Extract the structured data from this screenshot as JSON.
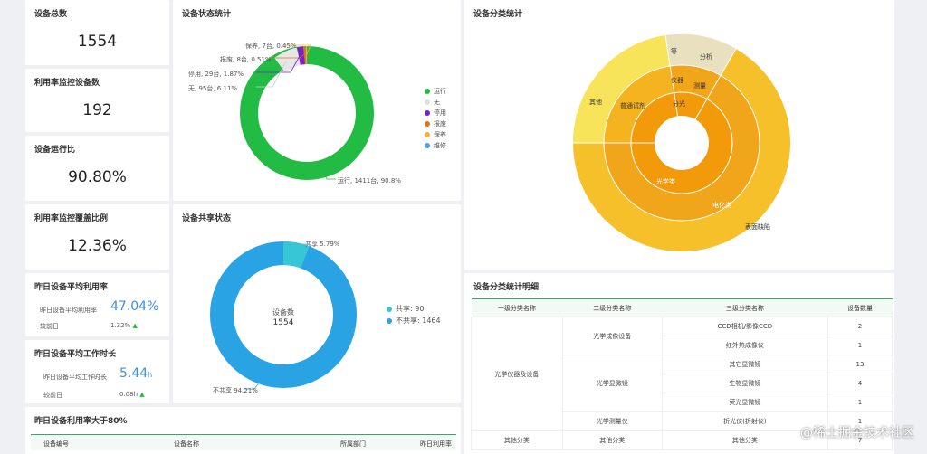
{
  "kpis": [
    {
      "title": "设备总数",
      "value": "1554"
    },
    {
      "title": "利用率监控设备数",
      "value": "192"
    },
    {
      "title": "设备运行比",
      "value": "90.80%"
    },
    {
      "title": "利用率监控覆盖比例",
      "value": "12.36%"
    }
  ],
  "util_rate": {
    "title": "昨日设备平均利用率",
    "label": "昨日设备平均利用率",
    "value": "47.04%",
    "compare_label": "较前日",
    "compare_value": "1.32%"
  },
  "work_time": {
    "title": "昨日设备平均工作时长",
    "label": "昨日设备平均工作时长",
    "value": "5.44",
    "unit": "h",
    "compare_label": "较前日",
    "compare_value": "0.08h"
  },
  "status_chart": {
    "title": "设备状态统计",
    "legend": [
      {
        "name": "运行",
        "color": "#22bb44"
      },
      {
        "name": "无",
        "color": "#e0e0e0"
      },
      {
        "name": "停用",
        "color": "#7a1fd0"
      },
      {
        "name": "报废",
        "color": "#e0761a"
      },
      {
        "name": "保养",
        "color": "#ffb030"
      },
      {
        "name": "维修",
        "color": "#4da3e8"
      }
    ],
    "labels": {
      "run": "运行, 1411台, 90.8%",
      "maint": "保养, 7台, 0.45%",
      "scrap": "报废, 8台, 0.51%",
      "stop": "停用, 29台, 1.87%",
      "none": "无, 95台, 6.11%"
    }
  },
  "share_chart": {
    "title": "设备共享状态",
    "center_label": "设备数",
    "center_value": "1554",
    "shared_label": "共享 5.79%",
    "unshared_label": "不共享 94.21%",
    "legend": [
      {
        "name": "共享: 90",
        "color": "#36c7d6"
      },
      {
        "name": "不共享: 1464",
        "color": "#29a3e3"
      }
    ]
  },
  "category_chart": {
    "title": "设备分类统计",
    "labels": {
      "inner": "光学类",
      "middle": "电化类",
      "outer_right": "表面缺陷",
      "left_mid": "普通试剂",
      "left_outer": "其他",
      "top1": "等",
      "top2": "仪器",
      "top3": "分光",
      "top4": "分析",
      "top5": "测量"
    }
  },
  "top_util": {
    "title": "昨日设备利用率大于80%",
    "columns": [
      "设备编号",
      "设备名称",
      "所属部门",
      "昨日利用率"
    ]
  },
  "detail": {
    "title": "设备分类统计明细",
    "columns": [
      "一级分类名称",
      "二级分类名称",
      "三级分类名称",
      "设备数量"
    ],
    "level1": [
      "光学仪器及设备",
      "其他分类"
    ],
    "level2": [
      "光学成像设备",
      "光学显微镜",
      "光学测量仪",
      "其他分类"
    ],
    "rows": [
      {
        "name": "CCD相机/影像CCD",
        "count": "2"
      },
      {
        "name": "红外热成像仪",
        "count": "1"
      },
      {
        "name": "其它显微镜",
        "count": "13"
      },
      {
        "name": "生物显微镜",
        "count": "4"
      },
      {
        "name": "荧光显微镜",
        "count": "1"
      },
      {
        "name": "折光仪(折射仪)",
        "count": "1"
      },
      {
        "name": "其他分类",
        "count": "7"
      }
    ]
  },
  "watermark": "@稀土掘金技术社区"
}
